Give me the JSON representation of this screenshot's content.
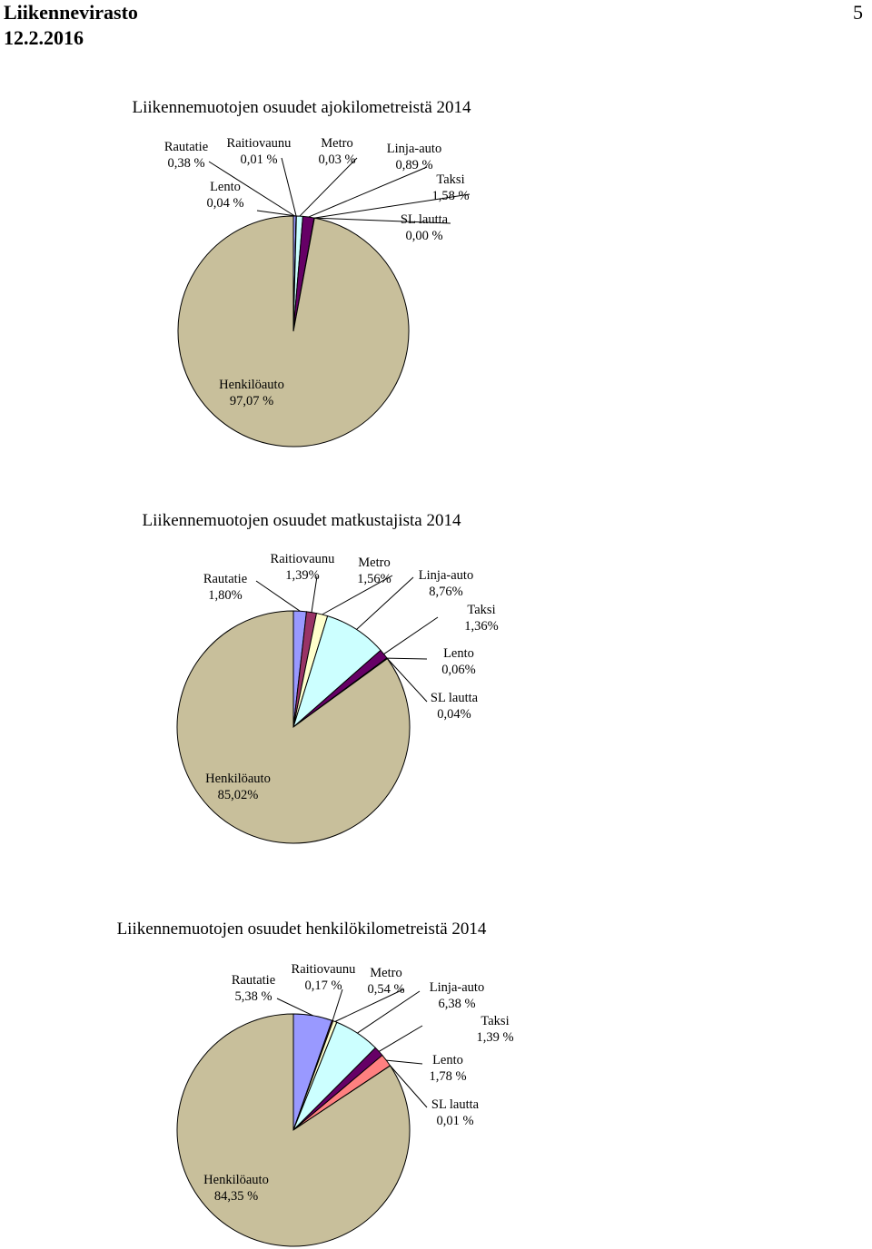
{
  "header": {
    "org": "Liikennevirasto",
    "date": "12.2.2016",
    "page_number": "5"
  },
  "chart_data": [
    {
      "type": "pie",
      "title": "Liikennemuotojen osuudet ajokilometreistä 2014",
      "slices": [
        {
          "name": "Rautatie",
          "value": 0.38,
          "label": "0,38 %",
          "color": "#9999ff"
        },
        {
          "name": "Raitiovaunu",
          "value": 0.01,
          "label": "0,01 %",
          "color": "#993366"
        },
        {
          "name": "Metro",
          "value": 0.03,
          "label": "0,03 %",
          "color": "#ffffcc"
        },
        {
          "name": "Linja-auto",
          "value": 0.89,
          "label": "0,89 %",
          "color": "#ccffff"
        },
        {
          "name": "Taksi",
          "value": 1.58,
          "label": "1,58 %",
          "color": "#660066"
        },
        {
          "name": "Lento",
          "value": 0.04,
          "label": "0,04 %",
          "color": "#ff8080"
        },
        {
          "name": "SL lautta",
          "value": 0.0,
          "label": "0,00 %",
          "color": "#0066cc"
        },
        {
          "name": "Henkilöauto",
          "value": 97.07,
          "label": "97,07 %",
          "color": "#c8bf9b"
        }
      ]
    },
    {
      "type": "pie",
      "title": "Liikennemuotojen osuudet matkustajista 2014",
      "slices": [
        {
          "name": "Rautatie",
          "value": 1.8,
          "label": "1,80%",
          "color": "#9999ff"
        },
        {
          "name": "Raitiovaunu",
          "value": 1.39,
          "label": "1,39%",
          "color": "#993366"
        },
        {
          "name": "Metro",
          "value": 1.56,
          "label": "1,56%",
          "color": "#ffffcc"
        },
        {
          "name": "Linja-auto",
          "value": 8.76,
          "label": "8,76%",
          "color": "#ccffff"
        },
        {
          "name": "Taksi",
          "value": 1.36,
          "label": "1,36%",
          "color": "#660066"
        },
        {
          "name": "Lento",
          "value": 0.06,
          "label": "0,06%",
          "color": "#ff8080"
        },
        {
          "name": "SL lautta",
          "value": 0.04,
          "label": "0,04%",
          "color": "#0066cc"
        },
        {
          "name": "Henkilöauto",
          "value": 85.02,
          "label": "85,02%",
          "color": "#c8bf9b"
        }
      ]
    },
    {
      "type": "pie",
      "title": "Liikennemuotojen osuudet henkilökilometreistä 2014",
      "slices": [
        {
          "name": "Rautatie",
          "value": 5.38,
          "label": "5,38 %",
          "color": "#9999ff"
        },
        {
          "name": "Raitiovaunu",
          "value": 0.17,
          "label": "0,17 %",
          "color": "#993366"
        },
        {
          "name": "Metro",
          "value": 0.54,
          "label": "0,54 %",
          "color": "#ffffcc"
        },
        {
          "name": "Linja-auto",
          "value": 6.38,
          "label": "6,38 %",
          "color": "#ccffff"
        },
        {
          "name": "Taksi",
          "value": 1.39,
          "label": "1,39 %",
          "color": "#660066"
        },
        {
          "name": "Lento",
          "value": 1.78,
          "label": "1,78 %",
          "color": "#ff8080"
        },
        {
          "name": "SL lautta",
          "value": 0.01,
          "label": "0,01 %",
          "color": "#0066cc"
        },
        {
          "name": "Henkilöauto",
          "value": 84.35,
          "label": "84,35 %",
          "color": "#c8bf9b"
        }
      ]
    }
  ]
}
